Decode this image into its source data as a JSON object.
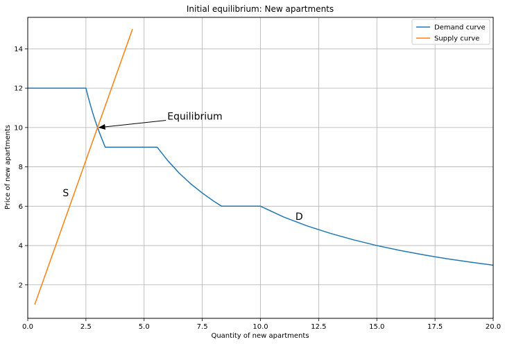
{
  "chart_data": {
    "type": "line",
    "title": "Initial equilibrium: New apartments",
    "xlabel": "Quantity of new apartments",
    "ylabel": "Price of new apartments",
    "xlim": [
      0,
      20
    ],
    "ylim": [
      0.3,
      15.6
    ],
    "xticks": [
      "0.0",
      "2.5",
      "5.0",
      "7.5",
      "10.0",
      "12.5",
      "15.0",
      "17.5",
      "20.0"
    ],
    "yticks": [
      "2",
      "4",
      "6",
      "8",
      "10",
      "12",
      "14"
    ],
    "grid": true,
    "legend_position": "top-right",
    "series": [
      {
        "name": "Demand curve",
        "color": "#1f77b4",
        "points": [
          [
            0,
            12
          ],
          [
            2.5,
            12
          ],
          [
            2.6,
            11.54
          ],
          [
            2.7,
            11.11
          ],
          [
            2.8,
            10.71
          ],
          [
            2.9,
            10.34
          ],
          [
            3.0,
            10.0
          ],
          [
            3.1,
            9.68
          ],
          [
            3.2,
            9.38
          ],
          [
            3.33,
            9.0
          ],
          [
            5.56,
            9.0
          ],
          [
            6.0,
            8.34
          ],
          [
            6.5,
            7.69
          ],
          [
            7.0,
            7.14
          ],
          [
            7.5,
            6.67
          ],
          [
            8.0,
            6.25
          ],
          [
            8.33,
            6.0
          ],
          [
            10.0,
            6.0
          ],
          [
            11.0,
            5.45
          ],
          [
            12.0,
            5.0
          ],
          [
            13.0,
            4.62
          ],
          [
            14.0,
            4.29
          ],
          [
            15.0,
            4.0
          ],
          [
            16.0,
            3.75
          ],
          [
            17.0,
            3.53
          ],
          [
            18.0,
            3.33
          ],
          [
            19.0,
            3.16
          ],
          [
            20.0,
            3.0
          ]
        ]
      },
      {
        "name": "Supply curve",
        "color": "#ff7f0e",
        "points": [
          [
            0.3,
            1.0
          ],
          [
            4.5,
            15.0
          ]
        ]
      }
    ],
    "annotations": [
      {
        "text": "Equilibrium",
        "x": 6.0,
        "y": 10.4,
        "arrow_to": [
          3.0,
          10.0
        ]
      },
      {
        "text": "S",
        "x": 1.5,
        "y": 6.5
      },
      {
        "text": "D",
        "x": 11.5,
        "y": 5.3
      }
    ]
  }
}
